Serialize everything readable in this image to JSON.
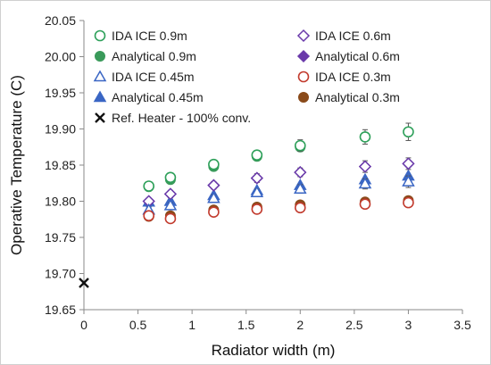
{
  "chart_data": {
    "type": "scatter",
    "xlabel": "Radiator width (m)",
    "ylabel": "Operative Temperature (C)",
    "xlim": [
      0,
      3.5
    ],
    "ylim": [
      19.65,
      20.05
    ],
    "xticks": [
      "0",
      "0.5",
      "1",
      "1.5",
      "2",
      "2.5",
      "3",
      "3.5"
    ],
    "yticks": [
      "19.65",
      "19.70",
      "19.75",
      "19.80",
      "19.85",
      "19.90",
      "19.95",
      "20.00",
      "20.05"
    ],
    "grid": false,
    "legend_position": "top",
    "series": [
      {
        "name": "IDA ICE 0.9m",
        "marker": "circle-open",
        "color": "#2ea05a",
        "x": [
          0.6,
          0.8,
          1.2,
          1.6,
          2.0,
          2.6,
          3.0
        ],
        "y": [
          19.821,
          19.833,
          19.851,
          19.864,
          19.877,
          19.889,
          19.896
        ],
        "err": [
          0.004,
          0.005,
          0.005,
          0.006,
          0.008,
          0.01,
          0.012
        ]
      },
      {
        "name": "Analytical 0.9m",
        "marker": "circle-filled",
        "color": "#3a9a5a",
        "x": [
          0.6,
          0.8,
          1.2,
          1.6,
          2.0,
          2.6,
          3.0
        ],
        "y": [
          19.82,
          19.83,
          19.848,
          19.862,
          19.875,
          19.889,
          19.896
        ],
        "err": [
          0,
          0,
          0,
          0,
          0,
          0,
          0
        ]
      },
      {
        "name": "IDA ICE 0.6m",
        "marker": "diamond-open",
        "color": "#6a3aaa",
        "x": [
          0.6,
          0.8,
          1.2,
          1.6,
          2.0,
          2.6,
          3.0
        ],
        "y": [
          19.8,
          19.81,
          19.822,
          19.832,
          19.84,
          19.848,
          19.852
        ],
        "err": [
          0.004,
          0.005,
          0.005,
          0.006,
          0.006,
          0.008,
          0.008
        ]
      },
      {
        "name": "Analytical 0.6m",
        "marker": "diamond-filled",
        "color": "#6a3aaa",
        "x": [
          0.6,
          0.8,
          1.2,
          1.6,
          2.0,
          2.6,
          3.0
        ],
        "y": [
          19.8,
          19.81,
          19.822,
          19.832,
          19.84,
          19.848,
          19.852
        ],
        "err": [
          0,
          0,
          0,
          0,
          0,
          0,
          0
        ]
      },
      {
        "name": "IDA ICE 0.45m",
        "marker": "triangle-open",
        "color": "#3a66c4",
        "x": [
          0.6,
          0.8,
          1.2,
          1.6,
          2.0,
          2.6,
          3.0
        ],
        "y": [
          19.788,
          19.794,
          19.804,
          19.812,
          19.817,
          19.824,
          19.827
        ],
        "err": [
          0.004,
          0.004,
          0.005,
          0.005,
          0.006,
          0.007,
          0.008
        ]
      },
      {
        "name": "Analytical 0.45m",
        "marker": "triangle-filled",
        "color": "#3a66c4",
        "x": [
          0.6,
          0.8,
          1.2,
          1.6,
          2.0,
          2.6,
          3.0
        ],
        "y": [
          19.799,
          19.8,
          19.808,
          19.815,
          19.822,
          19.83,
          19.835
        ],
        "err": [
          0,
          0,
          0,
          0,
          0,
          0,
          0
        ]
      },
      {
        "name": "IDA ICE 0.3m",
        "marker": "circle-open",
        "color": "#c23b2e",
        "x": [
          0.6,
          0.8,
          1.2,
          1.6,
          2.0,
          2.6,
          3.0
        ],
        "y": [
          19.78,
          19.776,
          19.785,
          19.789,
          19.791,
          19.796,
          19.798
        ],
        "err": [
          0.003,
          0.004,
          0.004,
          0.004,
          0.005,
          0.005,
          0.005
        ]
      },
      {
        "name": "Analytical 0.3m",
        "marker": "circle-filled",
        "color": "#8a4a1a",
        "x": [
          0.6,
          0.8,
          1.2,
          1.6,
          2.0,
          2.6,
          3.0
        ],
        "y": [
          19.779,
          19.78,
          19.788,
          19.792,
          19.795,
          19.799,
          19.801
        ],
        "err": [
          0,
          0,
          0,
          0,
          0,
          0,
          0
        ]
      },
      {
        "name": "Ref. Heater - 100% conv.",
        "marker": "x",
        "color": "#111111",
        "x": [
          0
        ],
        "y": [
          19.687
        ],
        "err": [
          0
        ]
      }
    ]
  }
}
